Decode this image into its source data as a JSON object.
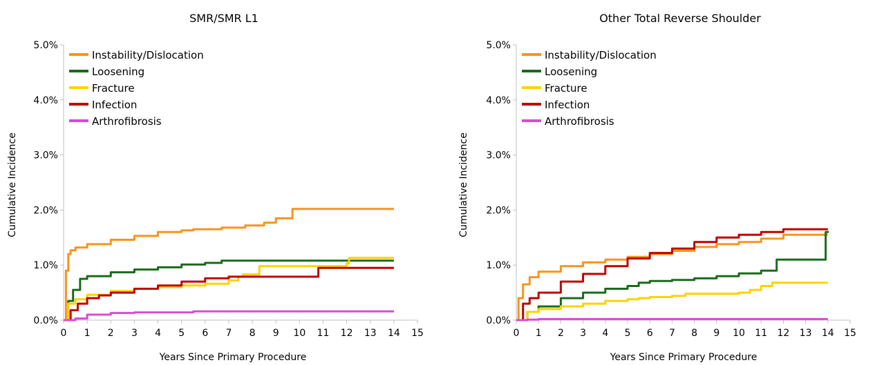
{
  "colors": {
    "Instability/Dislocation": "#f7941d",
    "Loosening": "#1a6b1a",
    "Fracture": "#ffd200",
    "Infection": "#c00000",
    "Arthrofibrosis": "#d94ad4"
  },
  "chart_data": [
    {
      "type": "line",
      "title": "SMR/SMR L1",
      "xlabel": "Years Since Primary Procedure",
      "ylabel": "Cumulative Incidence",
      "xlim": [
        0,
        15
      ],
      "ylim": [
        0,
        5
      ],
      "xticks": [
        "0",
        "1",
        "2",
        "3",
        "4",
        "5",
        "6",
        "7",
        "8",
        "9",
        "10",
        "11",
        "12",
        "13",
        "14",
        "15"
      ],
      "yticks": [
        "0.0%",
        "1.0%",
        "2.0%",
        "3.0%",
        "4.0%",
        "5.0%"
      ],
      "legend": "top-left",
      "series": [
        {
          "name": "Instability/Dislocation",
          "x": [
            0,
            0.1,
            0.2,
            0.3,
            0.5,
            1,
            2,
            3,
            4,
            5,
            5.5,
            6.7,
            7.7,
            8.5,
            9,
            9.7,
            10.7,
            12,
            14
          ],
          "y": [
            0,
            0.9,
            1.2,
            1.27,
            1.32,
            1.38,
            1.46,
            1.53,
            1.6,
            1.63,
            1.65,
            1.68,
            1.72,
            1.77,
            1.85,
            2.02,
            2.02,
            2.02,
            2.02
          ]
        },
        {
          "name": "Loosening",
          "x": [
            0,
            0.2,
            0.4,
            0.7,
            1,
            2,
            3,
            4,
            5,
            6,
            6.7,
            8,
            10,
            12,
            14
          ],
          "y": [
            0,
            0.35,
            0.55,
            0.75,
            0.8,
            0.87,
            0.92,
            0.96,
            1.01,
            1.04,
            1.08,
            1.08,
            1.08,
            1.08,
            1.08
          ]
        },
        {
          "name": "Fracture",
          "x": [
            0,
            0.2,
            0.5,
            1,
            2,
            3,
            4,
            5,
            6,
            7,
            7.4,
            7.6,
            8.3,
            9,
            10,
            11,
            12,
            12.1,
            14
          ],
          "y": [
            0,
            0.3,
            0.38,
            0.46,
            0.53,
            0.57,
            0.6,
            0.63,
            0.66,
            0.72,
            0.79,
            0.83,
            0.98,
            0.98,
            0.98,
            0.98,
            1.03,
            1.13,
            1.13
          ]
        },
        {
          "name": "Infection",
          "x": [
            0,
            0.3,
            0.6,
            1,
            1.5,
            2,
            3,
            4,
            5,
            6,
            7,
            8,
            9,
            10,
            10.7,
            10.8,
            12,
            14
          ],
          "y": [
            0,
            0.18,
            0.3,
            0.4,
            0.45,
            0.5,
            0.57,
            0.63,
            0.7,
            0.76,
            0.79,
            0.79,
            0.79,
            0.79,
            0.79,
            0.95,
            0.95,
            0.95
          ]
        },
        {
          "name": "Arthrofibrosis",
          "x": [
            0,
            0.5,
            1,
            2,
            3,
            4,
            5,
            5.5,
            6,
            8,
            10,
            12,
            14
          ],
          "y": [
            0,
            0.03,
            0.1,
            0.13,
            0.14,
            0.14,
            0.14,
            0.16,
            0.16,
            0.16,
            0.16,
            0.16,
            0.16
          ]
        }
      ]
    },
    {
      "type": "line",
      "title": "Other Total Reverse Shoulder",
      "xlabel": "Years Since Primary Procedure",
      "ylabel": "Cumulative Incidence",
      "xlim": [
        0,
        15
      ],
      "ylim": [
        0,
        5
      ],
      "xticks": [
        "0",
        "1",
        "2",
        "3",
        "4",
        "5",
        "6",
        "7",
        "8",
        "9",
        "10",
        "11",
        "12",
        "13",
        "14",
        "15"
      ],
      "yticks": [
        "0.0%",
        "1.0%",
        "2.0%",
        "3.0%",
        "4.0%",
        "5.0%"
      ],
      "legend": "top-left",
      "series": [
        {
          "name": "Instability/Dislocation",
          "x": [
            0,
            0.1,
            0.3,
            0.6,
            1,
            2,
            3,
            4,
            5,
            6,
            7,
            8,
            9,
            10,
            11,
            12,
            13,
            14
          ],
          "y": [
            0,
            0.4,
            0.65,
            0.78,
            0.88,
            0.98,
            1.05,
            1.1,
            1.15,
            1.2,
            1.26,
            1.33,
            1.38,
            1.42,
            1.48,
            1.55,
            1.55,
            1.55
          ]
        },
        {
          "name": "Loosening",
          "x": [
            0,
            0.5,
            1,
            2,
            3,
            4,
            5,
            5.5,
            6,
            7,
            8,
            9,
            10,
            11,
            11.6,
            11.7,
            13.8,
            13.9,
            14
          ],
          "y": [
            0,
            0.15,
            0.25,
            0.4,
            0.5,
            0.57,
            0.62,
            0.68,
            0.71,
            0.73,
            0.76,
            0.8,
            0.85,
            0.9,
            0.9,
            1.1,
            1.1,
            1.6,
            1.62
          ]
        },
        {
          "name": "Fracture",
          "x": [
            0,
            0.5,
            1,
            2,
            3,
            4,
            5,
            5.5,
            6,
            7,
            7.6,
            8,
            9,
            10,
            10.5,
            11,
            11.5,
            12,
            13,
            14
          ],
          "y": [
            0,
            0.15,
            0.2,
            0.25,
            0.3,
            0.35,
            0.38,
            0.4,
            0.42,
            0.44,
            0.48,
            0.48,
            0.48,
            0.5,
            0.55,
            0.62,
            0.68,
            0.68,
            0.68,
            0.68
          ]
        },
        {
          "name": "Infection",
          "x": [
            0,
            0.3,
            0.6,
            1,
            2,
            3,
            4,
            5,
            6,
            7,
            8,
            9,
            10,
            11,
            12,
            13,
            14
          ],
          "y": [
            0,
            0.3,
            0.4,
            0.5,
            0.7,
            0.84,
            0.98,
            1.12,
            1.22,
            1.3,
            1.42,
            1.5,
            1.55,
            1.6,
            1.65,
            1.65,
            1.65
          ]
        },
        {
          "name": "Arthrofibrosis",
          "x": [
            0,
            0.5,
            1,
            3,
            5,
            8,
            10,
            12,
            14
          ],
          "y": [
            0,
            0.01,
            0.02,
            0.02,
            0.02,
            0.02,
            0.02,
            0.02,
            0.02
          ]
        }
      ]
    }
  ]
}
